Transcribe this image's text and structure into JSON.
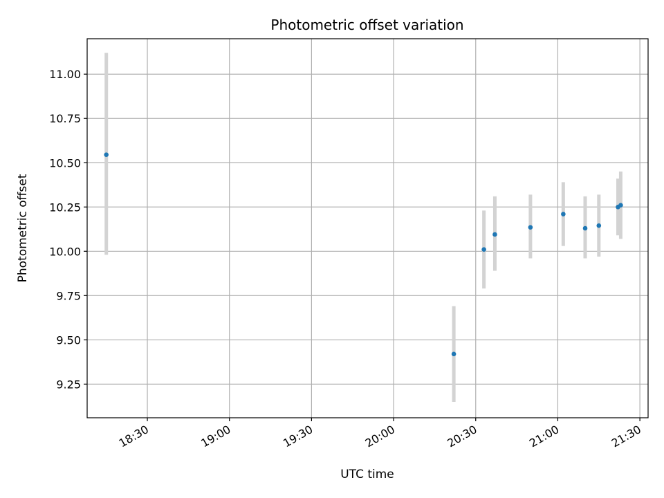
{
  "chart_data": {
    "type": "scatter",
    "title": "Photometric offset variation",
    "xlabel": "UTC time",
    "ylabel": "Photometric offset",
    "grid": true,
    "x_axis_kind": "time",
    "xlim": [
      "18:08",
      "21:33"
    ],
    "ylim": [
      9.06,
      11.2
    ],
    "x_ticks": [
      "18:30",
      "19:00",
      "19:30",
      "20:00",
      "20:30",
      "21:00",
      "21:30"
    ],
    "y_ticks": [
      "9.25",
      "9.50",
      "9.75",
      "10.00",
      "10.25",
      "10.50",
      "10.75",
      "11.00"
    ],
    "colors": {
      "points": "#1f77b4",
      "errorbars": "#d3d3d3",
      "grid": "#b0b0b0"
    },
    "points": [
      {
        "x": "18:15",
        "y": 10.545,
        "yerr_low": 9.98,
        "yerr_high": 11.12
      },
      {
        "x": "20:22",
        "y": 9.42,
        "yerr_low": 9.15,
        "yerr_high": 9.69
      },
      {
        "x": "20:33",
        "y": 10.01,
        "yerr_low": 9.79,
        "yerr_high": 10.23
      },
      {
        "x": "20:37",
        "y": 10.095,
        "yerr_low": 9.89,
        "yerr_high": 10.31
      },
      {
        "x": "20:50",
        "y": 10.135,
        "yerr_low": 9.96,
        "yerr_high": 10.32
      },
      {
        "x": "21:02",
        "y": 10.21,
        "yerr_low": 10.03,
        "yerr_high": 10.39
      },
      {
        "x": "21:10",
        "y": 10.13,
        "yerr_low": 9.96,
        "yerr_high": 10.31
      },
      {
        "x": "21:15",
        "y": 10.145,
        "yerr_low": 9.97,
        "yerr_high": 10.32
      },
      {
        "x": "21:22",
        "y": 10.25,
        "yerr_low": 10.09,
        "yerr_high": 10.41
      },
      {
        "x": "21:23",
        "y": 10.26,
        "yerr_low": 10.07,
        "yerr_high": 10.45
      }
    ]
  }
}
